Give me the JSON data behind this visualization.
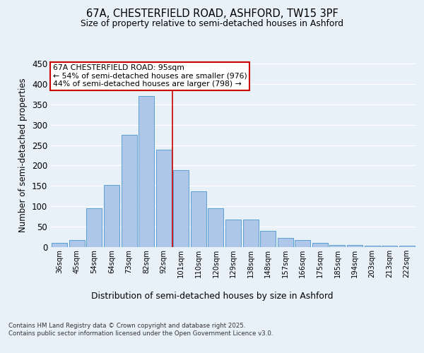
{
  "title": "67A, CHESTERFIELD ROAD, ASHFORD, TW15 3PF",
  "subtitle": "Size of property relative to semi-detached houses in Ashford",
  "xlabel": "Distribution of semi-detached houses by size in Ashford",
  "ylabel": "Number of semi-detached properties",
  "categories": [
    "36sqm",
    "45sqm",
    "54sqm",
    "64sqm",
    "73sqm",
    "82sqm",
    "92sqm",
    "101sqm",
    "110sqm",
    "120sqm",
    "129sqm",
    "138sqm",
    "148sqm",
    "157sqm",
    "166sqm",
    "175sqm",
    "185sqm",
    "194sqm",
    "203sqm",
    "213sqm",
    "222sqm"
  ],
  "values": [
    10,
    18,
    95,
    152,
    275,
    370,
    238,
    188,
    136,
    95,
    67,
    67,
    40,
    22,
    17,
    10,
    5,
    5,
    4,
    4,
    4
  ],
  "bar_color": "#aec6e8",
  "bar_edge_color": "#5a9fd4",
  "vline_x_idx": 6.5,
  "vline_color": "#cc0000",
  "annotation_title": "67A CHESTERFIELD ROAD: 95sqm",
  "annotation_line1": "← 54% of semi-detached houses are smaller (976)",
  "annotation_line2": "44% of semi-detached houses are larger (798) →",
  "annotation_box_color": "#ffffff",
  "annotation_box_edge": "#cc0000",
  "footer": "Contains HM Land Registry data © Crown copyright and database right 2025.\nContains public sector information licensed under the Open Government Licence v3.0.",
  "ylim": [
    0,
    450
  ],
  "yticks": [
    0,
    50,
    100,
    150,
    200,
    250,
    300,
    350,
    400,
    450
  ],
  "bg_color": "#e8f0f8",
  "grid_color": "#ffffff"
}
